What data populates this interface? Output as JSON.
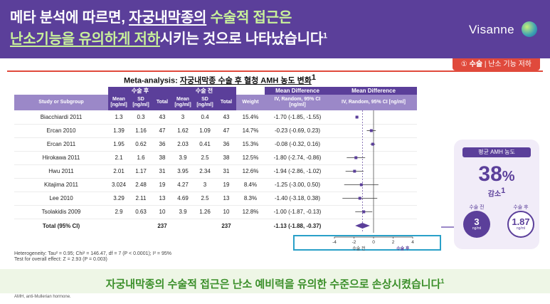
{
  "header": {
    "title_line1_a": "메타 분석에 따르면, ",
    "title_line1_b": "자궁내막종의",
    "title_line1_c": " 수술적 접근은",
    "title_line2_a": "난소기능을 유의하게 저하",
    "title_line2_b": "시키는 것으로 나타났습니다",
    "title_sup": "1",
    "brand": "Visanne"
  },
  "tag": {
    "number": "①",
    "bold": "수술",
    "rest": " | 난소 기능 저하"
  },
  "table": {
    "title_a": "Meta-analysis: ",
    "title_b": "자궁내막종 수술 후 혈청 AMH 농도 변화",
    "title_sup": "1",
    "group_after": "수술 후",
    "group_before": "수술 전",
    "group_md": "Mean Difference",
    "group_md2": "Mean Difference",
    "col_study": "Study or Subgroup",
    "col_mean": "Mean [ng/ml]",
    "col_sd": "SD [ng/ml]",
    "col_total": "Total",
    "col_weight": "Weight",
    "col_ci": "IV, Random, 95% CI [ng/ml]",
    "col_ci2": "IV, Random, 95% CI [ng/ml]",
    "rows": [
      {
        "study": "Biacchiardi 2011",
        "m1": "1.3",
        "sd1": "0.3",
        "n1": "43",
        "m2": "3",
        "sd2": "0.4",
        "n2": "43",
        "w": "15.4%",
        "ci": "-1.70 (-1.85, -1.55)"
      },
      {
        "study": "Ercan 2010",
        "m1": "1.39",
        "sd1": "1.16",
        "n1": "47",
        "m2": "1.62",
        "sd2": "1.09",
        "n2": "47",
        "w": "14.7%",
        "ci": "-0.23 (-0.69, 0.23)"
      },
      {
        "study": "Ercan 2011",
        "m1": "1.95",
        "sd1": "0.62",
        "n1": "36",
        "m2": "2.03",
        "sd2": "0.41",
        "n2": "36",
        "w": "15.3%",
        "ci": "-0.08 (-0.32, 0.16)"
      },
      {
        "study": "Hirokawa 2011",
        "m1": "2.1",
        "sd1": "1.6",
        "n1": "38",
        "m2": "3.9",
        "sd2": "2.5",
        "n2": "38",
        "w": "12.5%",
        "ci": "-1.80 (-2.74, -0.86)"
      },
      {
        "study": "Hwu 2011",
        "m1": "2.01",
        "sd1": "1.17",
        "n1": "31",
        "m2": "3.95",
        "sd2": "2.34",
        "n2": "31",
        "w": "12.6%",
        "ci": "-1.94 (-2.86, -1.02)"
      },
      {
        "study": "Kitajima 2011",
        "m1": "3.024",
        "sd1": "2.48",
        "n1": "19",
        "m2": "4.27",
        "sd2": "3",
        "n2": "19",
        "w": "8.4%",
        "ci": "-1.25 (-3.00, 0.50)"
      },
      {
        "study": "Lee 2010",
        "m1": "3.29",
        "sd1": "2.11",
        "n1": "13",
        "m2": "4.69",
        "sd2": "2.5",
        "n2": "13",
        "w": "8.3%",
        "ci": "-1.40 (-3.18, 0.38)"
      },
      {
        "study": "Tsolakidis 2009",
        "m1": "2.9",
        "sd1": "0.63",
        "n1": "10",
        "m2": "3.9",
        "sd2": "1.26",
        "n2": "10",
        "w": "12.8%",
        "ci": "-1.00 (-1.87, -0.13)"
      }
    ],
    "total": {
      "study": "Total (95% CI)",
      "n1": "237",
      "n2": "237",
      "ci": "-1.13 (-1.88, -0.37)"
    },
    "heterogeneity": "Heterogeneity: Tau² = 0.95; Chi² = 146.47, df = 7 (P < 0.0001); I² = 95%",
    "overall": "Test for overall effect: Z = 2.93 (P = 0.003)"
  },
  "chart_data": {
    "type": "forest",
    "x_ticks": [
      "-4",
      "-2",
      "0",
      "2",
      "4"
    ],
    "xlim": [
      -4,
      4
    ],
    "xlabel_left": "수술 전",
    "xlabel_right": "수술 후",
    "points": [
      {
        "study": "Biacchiardi 2011",
        "est": -1.7,
        "lo": -1.85,
        "hi": -1.55
      },
      {
        "study": "Ercan 2010",
        "est": -0.23,
        "lo": -0.69,
        "hi": 0.23
      },
      {
        "study": "Ercan 2011",
        "est": -0.08,
        "lo": -0.32,
        "hi": 0.16
      },
      {
        "study": "Hirokawa 2011",
        "est": -1.8,
        "lo": -2.74,
        "hi": -0.86
      },
      {
        "study": "Hwu 2011",
        "est": -1.94,
        "lo": -2.86,
        "hi": -1.02
      },
      {
        "study": "Kitajima 2011",
        "est": -1.25,
        "lo": -3.0,
        "hi": 0.5
      },
      {
        "study": "Lee 2010",
        "est": -1.4,
        "lo": -3.18,
        "hi": 0.38
      },
      {
        "study": "Tsolakidis 2009",
        "est": -1.0,
        "lo": -1.87,
        "hi": -0.13
      }
    ],
    "total": {
      "est": -1.13,
      "lo": -1.88,
      "hi": -0.37
    },
    "colors": {
      "mark": "#5b3f9a",
      "line": "#333333",
      "diamond": "#5b3f9a"
    }
  },
  "callout": {
    "tab": "평균 AMH 농도",
    "pct": "38",
    "pct_sign": "%",
    "pct_label": "감소",
    "pct_sup": "1",
    "before_label": "수술 전",
    "after_label": "수술 후",
    "before_value": "3",
    "after_value": "1.87",
    "unit": "ng/ml"
  },
  "bottom": {
    "message": "자궁내막종의 수술적 접근은 난소 예비력을 유의한 수준으로 손상시켰습니다",
    "sup": "1"
  },
  "footnote": "AMH, anti-Mullerian hormone."
}
